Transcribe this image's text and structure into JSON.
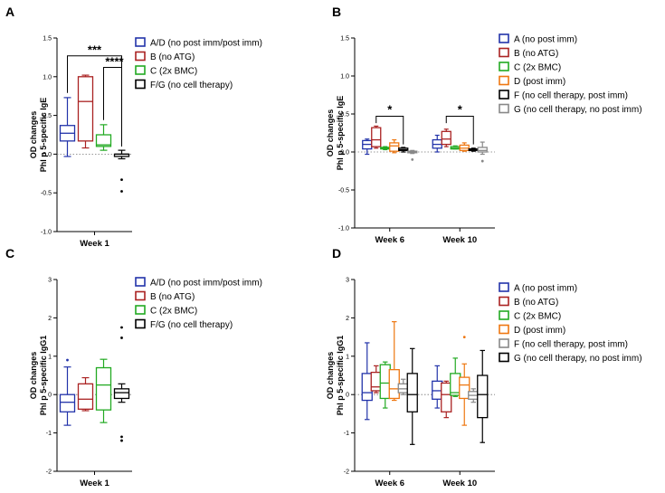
{
  "figure": {
    "panel_labels": [
      "A",
      "B",
      "C",
      "D"
    ]
  },
  "chart_data": [
    {
      "panel": "A",
      "type": "box",
      "ylabel": [
        "OD changes",
        "Phl p 5-specific IgE"
      ],
      "ylim": [
        -1.0,
        1.5
      ],
      "yticks": [
        "-1.0",
        "-0.5",
        "0.0",
        "0.5",
        "1.0",
        "1.5"
      ],
      "categories": [
        "Week 1"
      ],
      "series": [
        {
          "name": "A/D (no post imm/post imm)",
          "color": "#2233aa",
          "boxes": [
            {
              "min": -0.03,
              "q1": 0.17,
              "median": 0.27,
              "q3": 0.37,
              "max": 0.73
            }
          ],
          "outliers": [
            []
          ]
        },
        {
          "name": "B (no ATG)",
          "color": "#aa2222",
          "boxes": [
            {
              "min": 0.08,
              "q1": 0.17,
              "median": 0.68,
              "q3": 1.0,
              "max": 1.02
            }
          ],
          "outliers": [
            []
          ]
        },
        {
          "name": "C (2x BMC)",
          "color": "#22aa22",
          "boxes": [
            {
              "min": 0.05,
              "q1": 0.1,
              "median": 0.12,
              "q3": 0.25,
              "max": 0.38
            }
          ],
          "outliers": [
            []
          ]
        },
        {
          "name": "F/G (no cell therapy)",
          "color": "#000000",
          "boxes": [
            {
              "min": -0.06,
              "q1": -0.03,
              "median": 0.0,
              "q3": 0.0,
              "max": 0.05
            }
          ],
          "outliers": [
            [
              -0.33,
              -0.48
            ]
          ]
        }
      ],
      "annotations": [
        {
          "text": "***"
        },
        {
          "text": "****"
        }
      ]
    },
    {
      "panel": "B",
      "type": "box",
      "ylabel": [
        "OD changes",
        "Phl p 5-specific IgE"
      ],
      "ylim": [
        -1.0,
        1.5
      ],
      "yticks": [
        "-1.0",
        "-0.5",
        "0.0",
        "0.5",
        "1.0",
        "1.5"
      ],
      "categories": [
        "Week 6",
        "Week 10"
      ],
      "series": [
        {
          "name": "A (no post imm)",
          "color": "#2233aa",
          "boxes": [
            {
              "min": -0.03,
              "q1": 0.04,
              "median": 0.1,
              "q3": 0.15,
              "max": 0.17
            },
            {
              "min": 0.0,
              "q1": 0.05,
              "median": 0.1,
              "q3": 0.16,
              "max": 0.22
            }
          ],
          "outliers": [
            [],
            []
          ]
        },
        {
          "name": "B (no ATG)",
          "color": "#aa2222",
          "boxes": [
            {
              "min": 0.05,
              "q1": 0.07,
              "median": 0.16,
              "q3": 0.32,
              "max": 0.34
            },
            {
              "min": 0.07,
              "q1": 0.1,
              "median": 0.17,
              "q3": 0.27,
              "max": 0.3
            }
          ],
          "outliers": [
            [],
            []
          ]
        },
        {
          "name": "C (2x BMC)",
          "color": "#22aa22",
          "boxes": [
            {
              "min": 0.03,
              "q1": 0.04,
              "median": 0.05,
              "q3": 0.06,
              "max": 0.07
            },
            {
              "min": 0.04,
              "q1": 0.04,
              "median": 0.05,
              "q3": 0.07,
              "max": 0.08
            }
          ],
          "outliers": [
            [],
            []
          ]
        },
        {
          "name": "D (post imm)",
          "color": "#ee7711",
          "boxes": [
            {
              "min": -0.01,
              "q1": 0.01,
              "median": 0.08,
              "q3": 0.12,
              "max": 0.16
            },
            {
              "min": 0.01,
              "q1": 0.02,
              "median": 0.05,
              "q3": 0.09,
              "max": 0.12
            }
          ],
          "outliers": [
            [],
            []
          ]
        },
        {
          "name": "F (no cell therapy,  post imm)",
          "color": "#000000",
          "boxes": [
            {
              "min": 0.0,
              "q1": 0.02,
              "median": 0.03,
              "q3": 0.05,
              "max": 0.06
            },
            {
              "min": 0.01,
              "q1": 0.02,
              "median": 0.03,
              "q3": 0.04,
              "max": 0.05
            }
          ],
          "outliers": [
            [],
            []
          ]
        },
        {
          "name": "G (no cell therapy,  no post imm)",
          "color": "#888888",
          "boxes": [
            {
              "min": -0.02,
              "q1": -0.01,
              "median": 0.0,
              "q3": 0.01,
              "max": 0.02
            },
            {
              "min": -0.03,
              "q1": 0.0,
              "median": 0.02,
              "q3": 0.06,
              "max": 0.13
            }
          ],
          "outliers": [
            [
              -0.1
            ],
            [
              -0.12
            ]
          ]
        }
      ],
      "annotations": [
        {
          "text": "*"
        },
        {
          "text": "*"
        }
      ]
    },
    {
      "panel": "C",
      "type": "box",
      "ylabel": [
        "OD changes",
        "Phl p 5-specific IgG1"
      ],
      "ylim": [
        -2,
        3
      ],
      "yticks": [
        "-2",
        "-1",
        "0",
        "1",
        "2",
        "3"
      ],
      "categories": [
        "Week 1"
      ],
      "series": [
        {
          "name": "A/D (no post imm/post imm)",
          "color": "#2233aa",
          "boxes": [
            {
              "min": -0.8,
              "q1": -0.45,
              "median": -0.2,
              "q3": 0.0,
              "max": 0.72
            }
          ],
          "outliers": [
            [
              0.9
            ]
          ]
        },
        {
          "name": "B (no ATG)",
          "color": "#aa2222",
          "boxes": [
            {
              "min": -0.42,
              "q1": -0.38,
              "median": -0.12,
              "q3": 0.28,
              "max": 0.44
            }
          ],
          "outliers": [
            []
          ]
        },
        {
          "name": "C (2x BMC)",
          "color": "#22aa22",
          "boxes": [
            {
              "min": -0.73,
              "q1": -0.4,
              "median": 0.25,
              "q3": 0.7,
              "max": 0.92
            }
          ],
          "outliers": [
            []
          ]
        },
        {
          "name": "F/G (no cell therapy)",
          "color": "#000000",
          "boxes": [
            {
              "min": -0.2,
              "q1": -0.1,
              "median": 0.05,
              "q3": 0.15,
              "max": 0.28
            }
          ],
          "outliers": [
            [
              1.75,
              1.48,
              -1.1,
              -1.2
            ]
          ]
        }
      ]
    },
    {
      "panel": "D",
      "type": "box",
      "ylabel": [
        "OD changes",
        "Phl p 5-specific IgG1"
      ],
      "ylim": [
        -2,
        3
      ],
      "yticks": [
        "-2",
        "-1",
        "0",
        "1",
        "2",
        "3"
      ],
      "categories": [
        "Week 6",
        "Week 10"
      ],
      "series": [
        {
          "name": "A (no post imm)",
          "color": "#2233aa",
          "boxes": [
            {
              "min": -0.65,
              "q1": -0.15,
              "median": 0.05,
              "q3": 0.55,
              "max": 1.35
            },
            {
              "min": -0.35,
              "q1": -0.12,
              "median": 0.1,
              "q3": 0.35,
              "max": 0.75
            }
          ],
          "outliers": [
            [],
            []
          ]
        },
        {
          "name": "B (no ATG)",
          "color": "#aa2222",
          "boxes": [
            {
              "min": 0.05,
              "q1": 0.1,
              "median": 0.2,
              "q3": 0.58,
              "max": 0.75
            },
            {
              "min": -0.6,
              "q1": -0.45,
              "median": 0.0,
              "q3": 0.3,
              "max": 0.35
            }
          ],
          "outliers": [
            [],
            []
          ]
        },
        {
          "name": "C (2x BMC)",
          "color": "#22aa22",
          "boxes": [
            {
              "min": -0.35,
              "q1": -0.1,
              "median": 0.3,
              "q3": 0.78,
              "max": 0.85
            },
            {
              "min": -0.05,
              "q1": -0.02,
              "median": 0.05,
              "q3": 0.55,
              "max": 0.95
            }
          ],
          "outliers": [
            [],
            []
          ]
        },
        {
          "name": "D (post imm)",
          "color": "#ee7711",
          "boxes": [
            {
              "min": -0.15,
              "q1": -0.1,
              "median": 0.15,
              "q3": 0.65,
              "max": 1.9
            },
            {
              "min": -0.8,
              "q1": -0.1,
              "median": 0.25,
              "q3": 0.45,
              "max": 0.8
            }
          ],
          "outliers": [
            [],
            [
              1.5
            ]
          ]
        },
        {
          "name": "F (no cell therapy, post imm)",
          "color": "#888888",
          "boxes": [
            {
              "min": 0.0,
              "q1": 0.05,
              "median": 0.15,
              "q3": 0.28,
              "max": 0.4
            },
            {
              "min": -0.2,
              "q1": -0.12,
              "median": -0.02,
              "q3": 0.08,
              "max": 0.15
            }
          ],
          "outliers": [
            [],
            []
          ]
        },
        {
          "name": "G (no cell therapy, no post imm)",
          "color": "#000000",
          "boxes": [
            {
              "min": -1.3,
              "q1": -0.45,
              "median": 0.0,
              "q3": 0.55,
              "max": 1.2
            },
            {
              "min": -1.25,
              "q1": -0.6,
              "median": 0.0,
              "q3": 0.5,
              "max": 1.15
            }
          ],
          "outliers": [
            [],
            []
          ]
        }
      ]
    }
  ]
}
